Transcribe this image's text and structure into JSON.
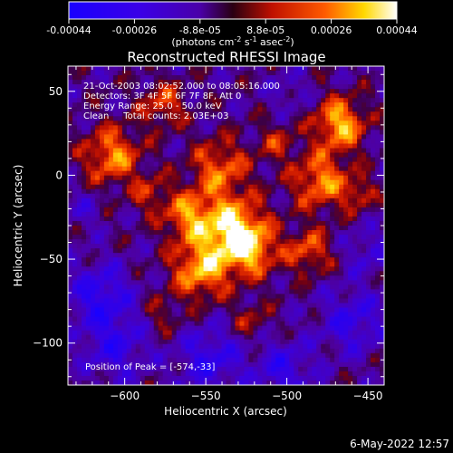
{
  "colorbar": {
    "ticks": [
      "-0.00044",
      "-0.00026",
      "-8.8e-05",
      "8.8e-05",
      "0.00026",
      "0.00044"
    ],
    "unit_parts": [
      "(photons cm",
      "-2",
      " s",
      "-1",
      " asec",
      "-2",
      ")"
    ]
  },
  "chart_data": {
    "type": "heatmap",
    "title": "Reconstructed RHESSI Image",
    "xlabel": "Heliocentric X (arcsec)",
    "ylabel": "Heliocentric Y (arcsec)",
    "xlim": [
      -635,
      -440
    ],
    "ylim": [
      -125,
      65
    ],
    "xticks": [
      -600,
      -550,
      -500,
      -450
    ],
    "yticks": [
      50,
      0,
      -50,
      -100
    ],
    "colormap": "RHESSI red-temperature: blue (negative) through purple, red, orange, yellow to white (positive)",
    "color_range": [
      -0.00044,
      0.00044
    ],
    "peak": [
      -574,
      -33
    ]
  },
  "annotations": [
    "21-Oct-2003 08:02:52.000 to 08:05:16.000",
    "Detectors: 3F 4F 5F 6F 7F 8F, Att 0",
    "Energy Range: 25.0 - 50.0 keV",
    "Clean     Total counts: 2.03E+03"
  ],
  "peak_label": "Position of Peak = [-574,-33]",
  "timestamp": "6-May-2022 12:57",
  "colors": {
    "background": "#000000",
    "text": "#ffffff",
    "neg": "#3300ff",
    "low": "#5500aa",
    "mid": "#dd1100",
    "high": "#ffaa00",
    "top": "#ffffff"
  }
}
